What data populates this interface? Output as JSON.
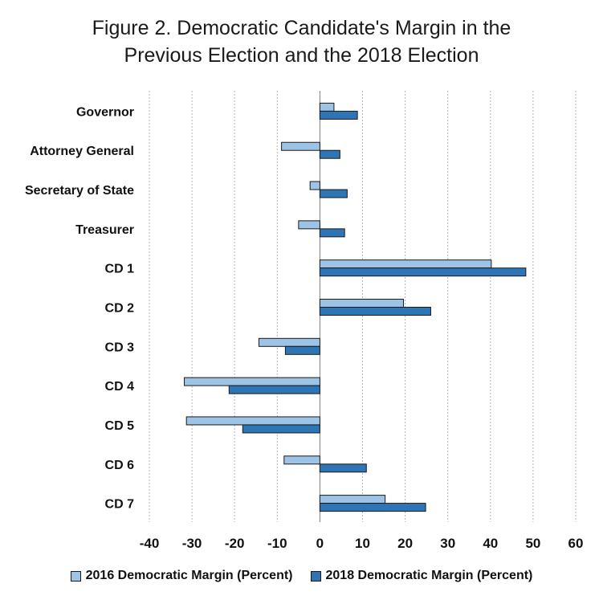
{
  "chart_data": {
    "type": "bar",
    "orientation": "horizontal",
    "title_lines": [
      "Figure 2. Democratic Candidate's Margin in the",
      "Previous Election and the 2018 Election"
    ],
    "categories": [
      "Governor",
      "Attorney General",
      "Secretary of State",
      "Treasurer",
      "CD 1",
      "CD 2",
      "CD 3",
      "CD 4",
      "CD 5",
      "CD 6",
      "CD 7"
    ],
    "series": [
      {
        "name": "2016 Democratic Margin (Percent)",
        "color": "#9dc3e6",
        "values": [
          3.3,
          -9.0,
          -2.3,
          -5.0,
          40.2,
          19.6,
          -14.3,
          -31.8,
          -31.3,
          -8.4,
          15.3
        ]
      },
      {
        "name": "2018 Democratic Margin (Percent)",
        "color": "#2e75b6",
        "values": [
          8.8,
          4.7,
          6.4,
          5.8,
          48.3,
          26.0,
          -8.1,
          -21.3,
          -18.1,
          10.9,
          24.8
        ]
      }
    ],
    "xlim": [
      -40,
      60
    ],
    "xticks": [
      -40,
      -30,
      -20,
      -10,
      0,
      10,
      20,
      30,
      40,
      50,
      60
    ],
    "gridlines": "vertical dashed",
    "legend_position": "bottom"
  }
}
